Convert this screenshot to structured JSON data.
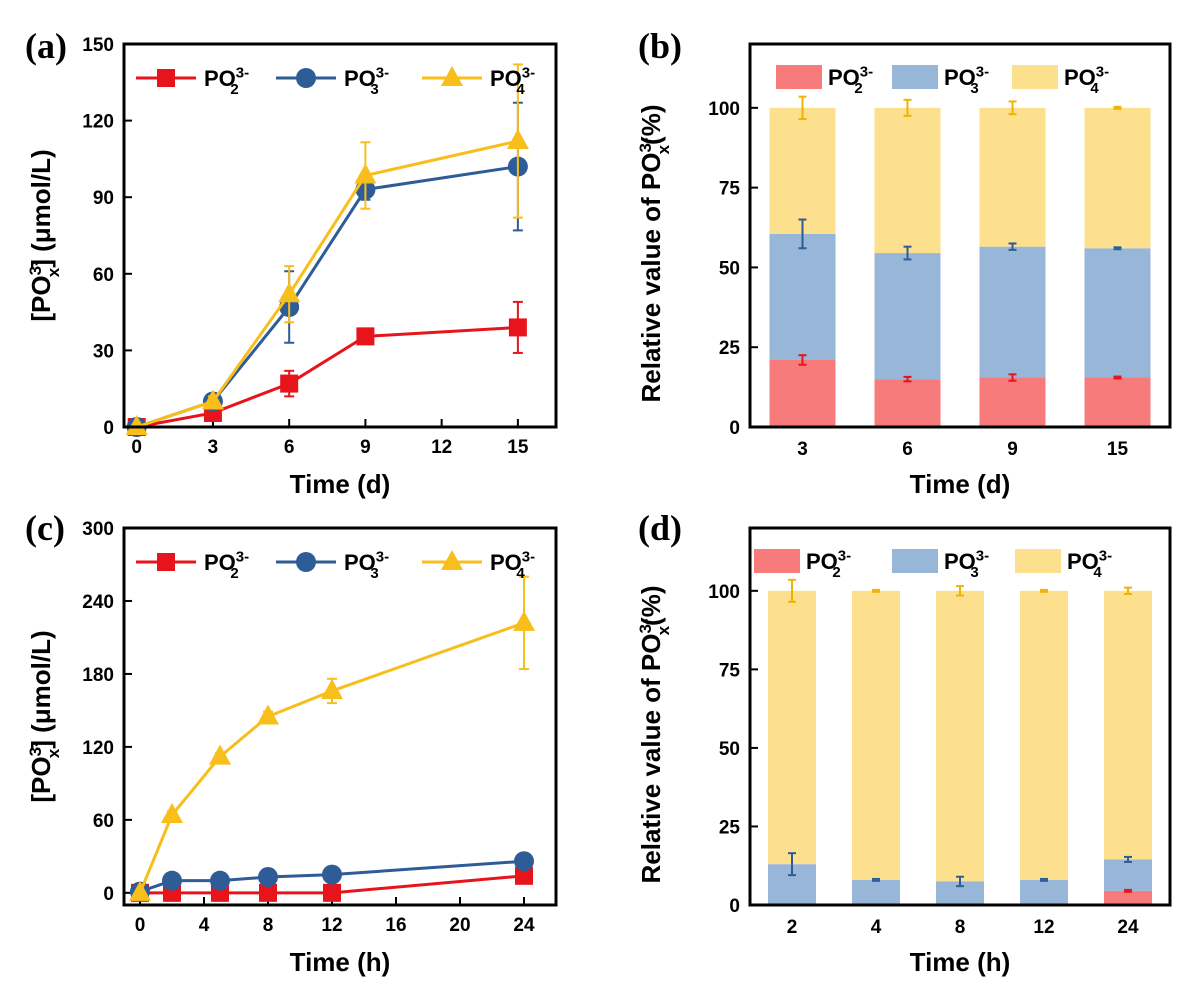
{
  "colors": {
    "po2_line": "#e8141c",
    "po3_line": "#2e5c97",
    "po4_line": "#f8be1c",
    "po2_bar": "#f77b7b",
    "po3_bar": "#98b6d8",
    "po4_bar": "#fde08e",
    "po2_err": "#e8141c",
    "po3_err": "#2e5c97",
    "po4_err": "#f0b400"
  },
  "legend": {
    "po2": {
      "base": "PO",
      "sub": "2",
      "sup": "3-"
    },
    "po3": {
      "base": "PO",
      "sub": "3",
      "sup": "3-"
    },
    "po4": {
      "base": "PO",
      "sub": "4",
      "sup": "3-"
    }
  },
  "ylabel_line": {
    "pre": "[PO",
    "sub": "x",
    "sup": "3-",
    "post": "] (μmol/L)"
  },
  "ylabel_bar": {
    "pre": "Relative value of PO",
    "sub": "x",
    "sup": "3-",
    "post": "(%)"
  },
  "chart_data": [
    {
      "panel": "(a)",
      "type": "line",
      "xlabel": "Time (d)",
      "x": [
        0,
        3,
        6,
        9,
        15
      ],
      "xticks": [
        "0",
        "3",
        "6",
        "9",
        "12",
        "15"
      ],
      "xlim": [
        -0.5,
        16.5
      ],
      "ylim": [
        0,
        150
      ],
      "yticks": [
        "0",
        "30",
        "60",
        "90",
        "120",
        "150"
      ],
      "legend_position": "top",
      "series": [
        {
          "name": "PO2 3-",
          "key": "po2",
          "marker": "square",
          "values": [
            0,
            5.5,
            17,
            35.5,
            39
          ],
          "errors": [
            0,
            1,
            5,
            1.5,
            10
          ]
        },
        {
          "name": "PO3 3-",
          "key": "po3",
          "marker": "circle",
          "values": [
            0,
            10,
            47,
            93,
            102
          ],
          "errors": [
            0,
            2,
            14,
            4,
            25
          ]
        },
        {
          "name": "PO4 3-",
          "key": "po4",
          "marker": "triangle",
          "values": [
            0,
            10,
            52,
            98.5,
            112
          ],
          "errors": [
            0,
            2,
            11,
            13,
            30
          ]
        }
      ]
    },
    {
      "panel": "(b)",
      "type": "bar",
      "stacked": true,
      "xlabel": "Time (d)",
      "categories": [
        "3",
        "6",
        "9",
        "15"
      ],
      "ylim": [
        0,
        120
      ],
      "yticks": [
        "0",
        "25",
        "50",
        "75",
        "100"
      ],
      "legend_position": "top",
      "series": [
        {
          "name": "PO2 3-",
          "key": "po2",
          "values": [
            21,
            15,
            15.5,
            15.5
          ],
          "errors": [
            1.5,
            0.7,
            1.0,
            0.3
          ]
        },
        {
          "name": "PO3 3-",
          "key": "po3",
          "values": [
            39.5,
            39.5,
            41,
            40.5
          ],
          "errors": [
            4.5,
            2.0,
            1.0,
            0.3
          ]
        },
        {
          "name": "PO4 3-",
          "key": "po4",
          "values": [
            39.5,
            45.5,
            43.5,
            44
          ],
          "errors": [
            3.5,
            2.5,
            2.0,
            0.3
          ]
        }
      ]
    },
    {
      "panel": "(c)",
      "type": "line",
      "xlabel": "Time (h)",
      "x": [
        0,
        2,
        5,
        8,
        12,
        24
      ],
      "xticks": [
        "0",
        "4",
        "8",
        "12",
        "16",
        "20",
        "24"
      ],
      "xlim": [
        -1,
        26
      ],
      "ylim": [
        -10,
        300
      ],
      "yticks": [
        "0",
        "60",
        "120",
        "180",
        "240",
        "300"
      ],
      "legend_position": "top",
      "series": [
        {
          "name": "PO2 3-",
          "key": "po2",
          "marker": "square",
          "values": [
            0,
            0,
            0,
            0,
            0,
            14
          ],
          "errors": [
            0,
            0,
            0,
            0,
            0,
            2
          ]
        },
        {
          "name": "PO3 3-",
          "key": "po3",
          "marker": "circle",
          "values": [
            1,
            10,
            10,
            13,
            15,
            26
          ],
          "errors": [
            0,
            1,
            1,
            1,
            1,
            2
          ]
        },
        {
          "name": "PO4 3-",
          "key": "po4",
          "marker": "triangle",
          "values": [
            0,
            64,
            112,
            145,
            166,
            222
          ],
          "errors": [
            0,
            3,
            3,
            4,
            10,
            38
          ]
        }
      ]
    },
    {
      "panel": "(d)",
      "type": "bar",
      "stacked": true,
      "xlabel": "Time (h)",
      "categories": [
        "2",
        "4",
        "8",
        "12",
        "24"
      ],
      "ylim": [
        0,
        120
      ],
      "yticks": [
        "0",
        "25",
        "50",
        "75",
        "100"
      ],
      "legend_position": "top",
      "series": [
        {
          "name": "PO2 3-",
          "key": "po2",
          "values": [
            0,
            0,
            0,
            0,
            4.5
          ],
          "errors": [
            0,
            0,
            0,
            0,
            0.3
          ]
        },
        {
          "name": "PO3 3-",
          "key": "po3",
          "values": [
            13,
            8,
            7.5,
            8,
            10
          ],
          "errors": [
            3.5,
            0.3,
            1.5,
            0.3,
            0.8
          ]
        },
        {
          "name": "PO4 3-",
          "key": "po4",
          "values": [
            87,
            92,
            92.5,
            92,
            85.5
          ],
          "errors": [
            3.5,
            0.3,
            1.5,
            0.3,
            1.0
          ]
        }
      ]
    }
  ]
}
